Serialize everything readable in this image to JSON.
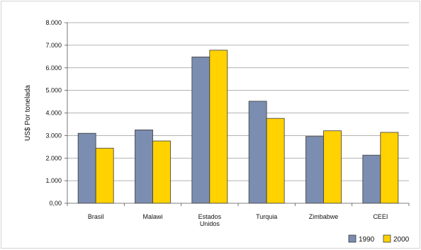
{
  "chart_data": {
    "type": "bar",
    "ylabel": "US$ Por tonelada",
    "ylim": [
      0,
      8000
    ],
    "yticks": [
      0,
      1000,
      2000,
      3000,
      4000,
      5000,
      6000,
      7000,
      8000
    ],
    "ytick_labels": [
      "0,00",
      "1.000",
      "2.000",
      "3.000",
      "4.000",
      "5.000",
      "6.000",
      "7.000",
      "8.000"
    ],
    "grid": true,
    "legend_position": "bottom-right",
    "categories": [
      [
        "Brasil"
      ],
      [
        "Malawi"
      ],
      [
        "Estados",
        "Unidos"
      ],
      [
        "Turquia"
      ],
      [
        "Zimbabwe"
      ],
      [
        "CEEI"
      ]
    ],
    "series": [
      {
        "name": "1990",
        "color": "#7B8DB0",
        "values": [
          3100,
          3250,
          6480,
          4520,
          2960,
          2130
        ]
      },
      {
        "name": "2000",
        "color": "#FFD200",
        "values": [
          2440,
          2760,
          6780,
          3760,
          3210,
          3140
        ]
      }
    ]
  }
}
